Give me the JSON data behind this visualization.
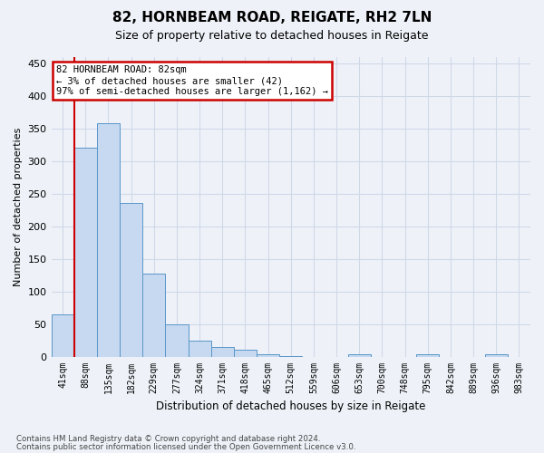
{
  "title": "82, HORNBEAM ROAD, REIGATE, RH2 7LN",
  "subtitle": "Size of property relative to detached houses in Reigate",
  "xlabel": "Distribution of detached houses by size in Reigate",
  "ylabel": "Number of detached properties",
  "footer_line1": "Contains HM Land Registry data © Crown copyright and database right 2024.",
  "footer_line2": "Contains public sector information licensed under the Open Government Licence v3.0.",
  "bin_labels": [
    "41sqm",
    "88sqm",
    "135sqm",
    "182sqm",
    "229sqm",
    "277sqm",
    "324sqm",
    "371sqm",
    "418sqm",
    "465sqm",
    "512sqm",
    "559sqm",
    "606sqm",
    "653sqm",
    "700sqm",
    "748sqm",
    "795sqm",
    "842sqm",
    "889sqm",
    "936sqm",
    "983sqm"
  ],
  "bar_values": [
    65,
    320,
    358,
    235,
    127,
    49,
    25,
    15,
    10,
    4,
    1,
    0,
    0,
    3,
    0,
    0,
    3,
    0,
    0,
    3,
    0
  ],
  "bar_color": "#c6d9f1",
  "bar_edge_color": "#5a96c8",
  "grid_color": "#d0d8e8",
  "annotation_line1": "82 HORNBEAM ROAD: 82sqm",
  "annotation_line2": "← 3% of detached houses are smaller (42)",
  "annotation_line3": "97% of semi-detached houses are larger (1,162) →",
  "annotation_box_color": "#ffffff",
  "annotation_border_color": "#cc0000",
  "marker_line_color": "#cc0000",
  "ylim": [
    0,
    460
  ],
  "yticks": [
    0,
    50,
    100,
    150,
    200,
    250,
    300,
    350,
    400,
    450
  ],
  "background_color": "#eef2f8",
  "axes_background_color": "#eef2f8"
}
